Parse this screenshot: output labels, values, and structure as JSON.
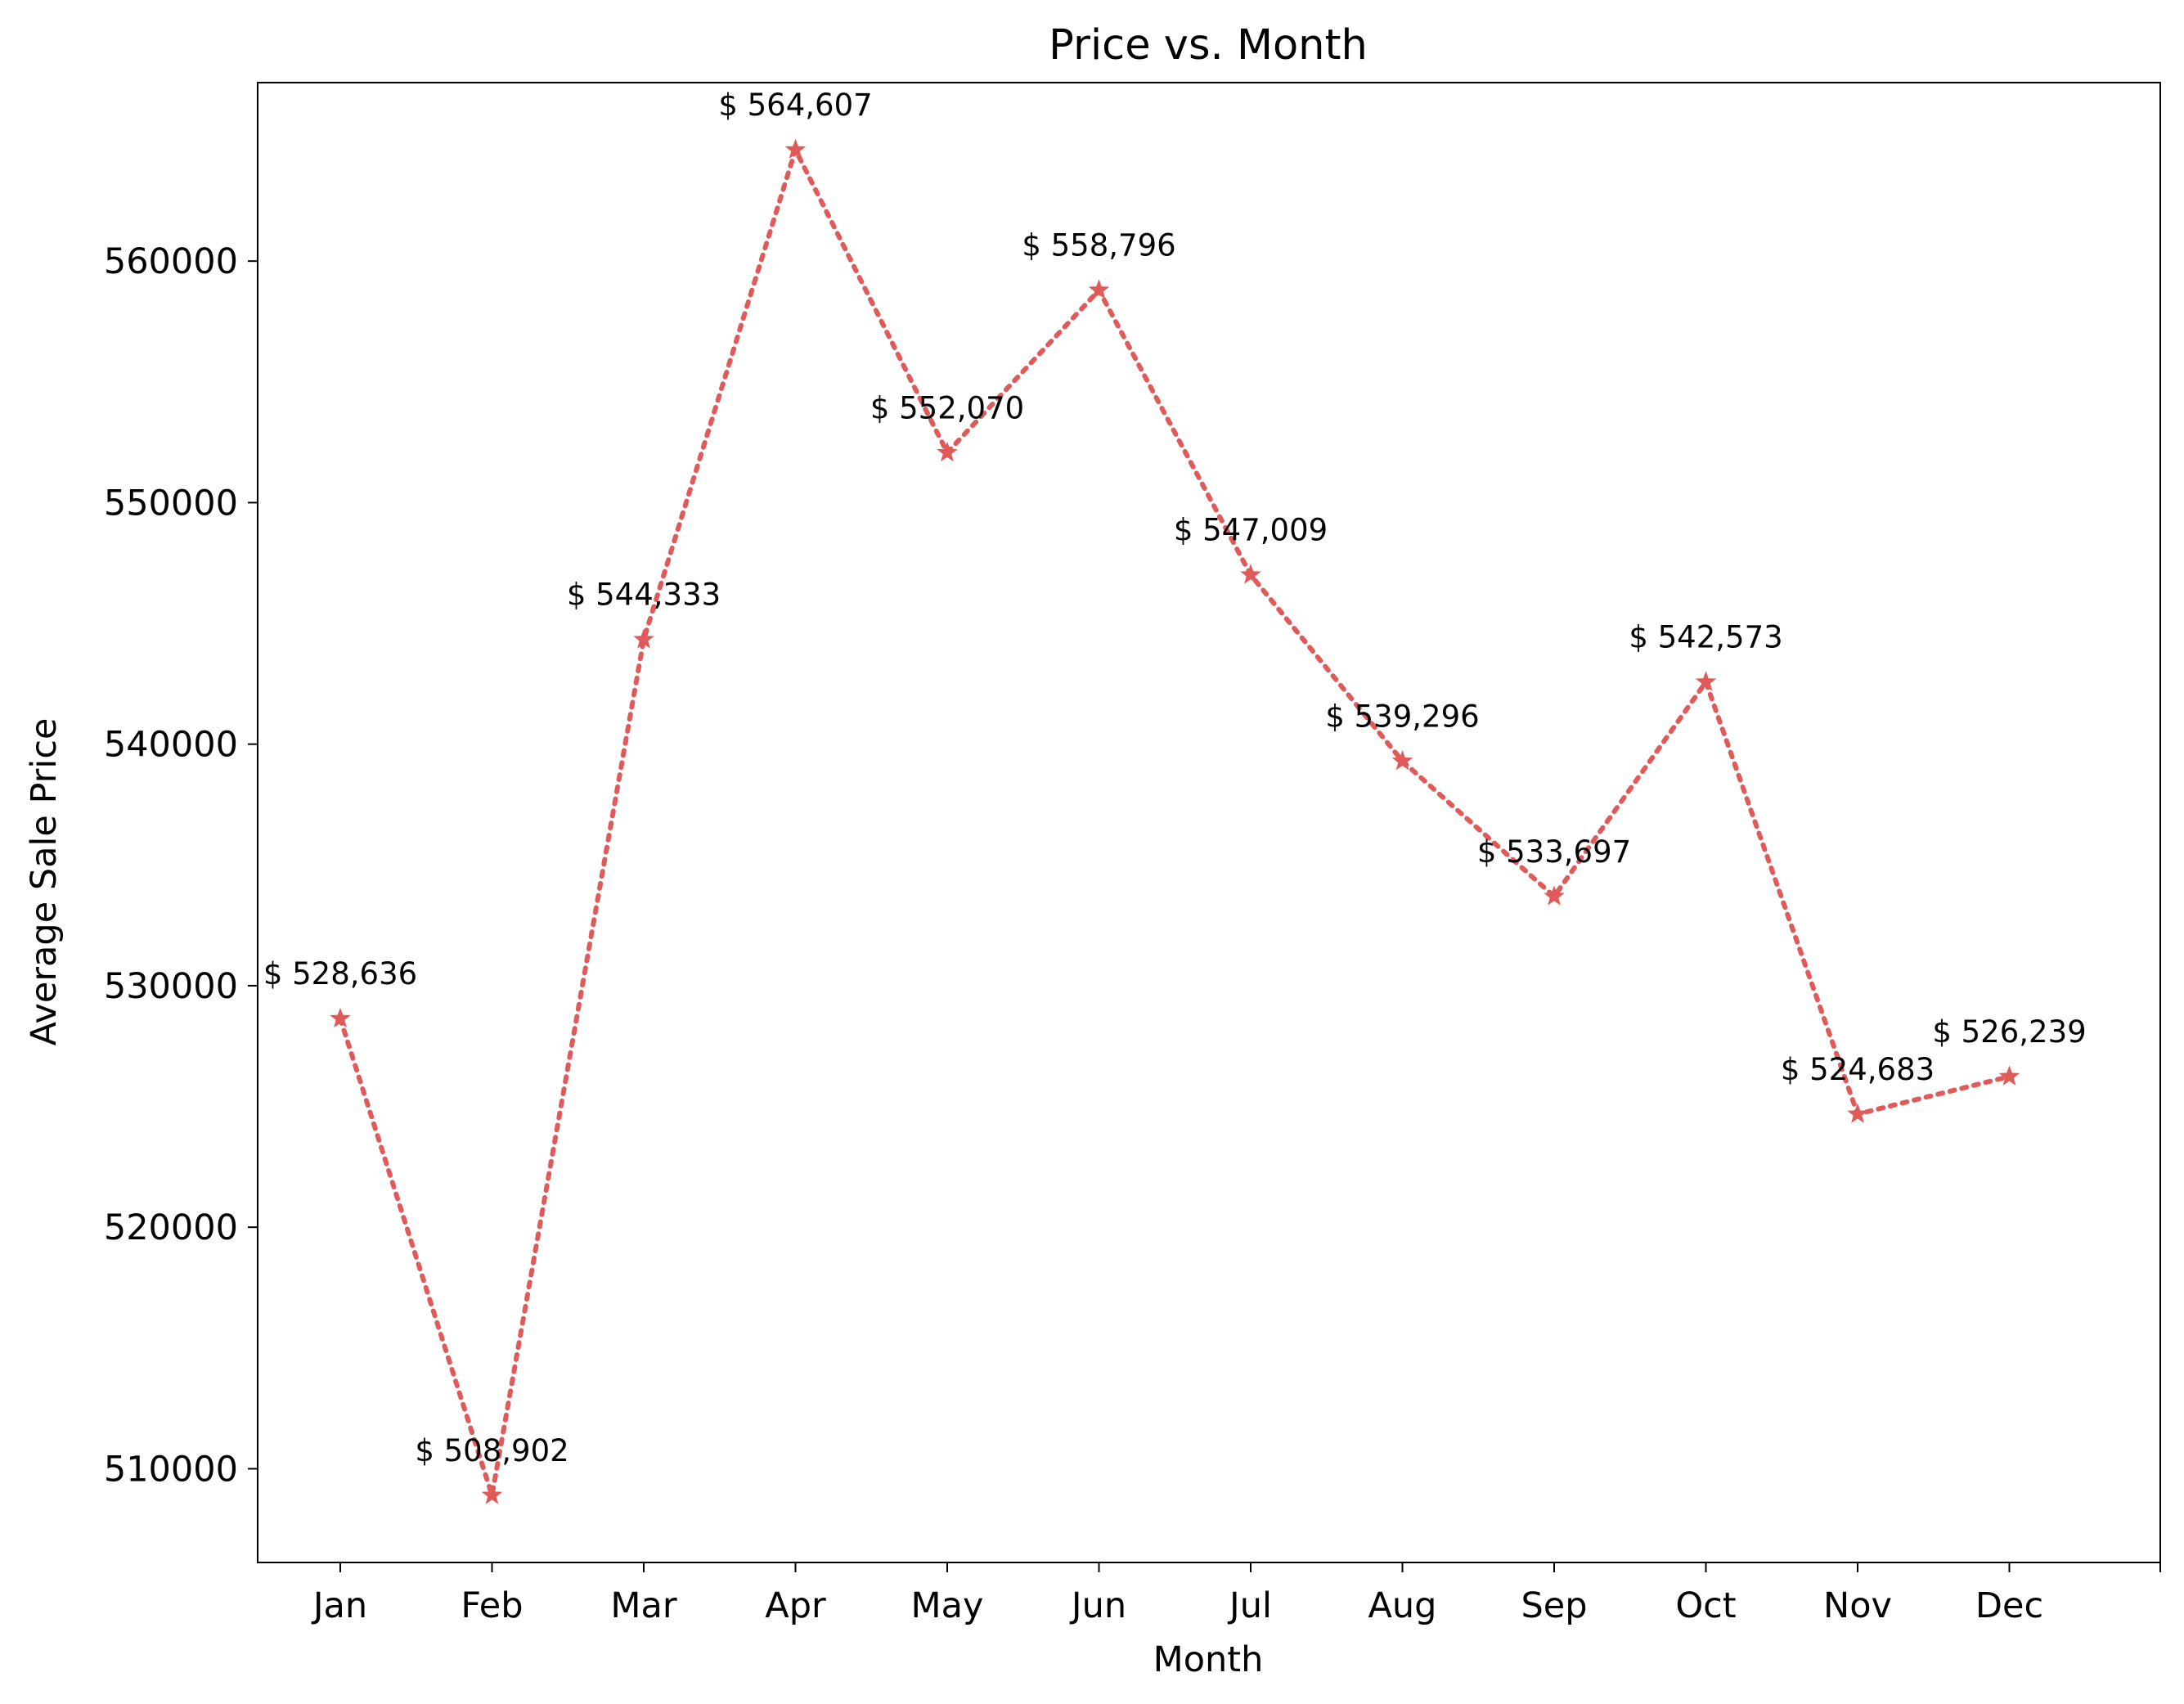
{
  "chart_data": {
    "type": "line",
    "title": "Price vs. Month",
    "xlabel": "Month",
    "ylabel": "Average Sale Price",
    "categories": [
      "Jan",
      "Feb",
      "Mar",
      "Apr",
      "May",
      "Jun",
      "Jul",
      "Aug",
      "Sep",
      "Oct",
      "Nov",
      "Dec"
    ],
    "values": [
      528636,
      508902,
      544333,
      564607,
      552070,
      558796,
      547009,
      539296,
      533697,
      542573,
      524683,
      526239
    ],
    "data_labels": [
      "$ 528,636",
      "$ 508,902",
      "$ 544,333",
      "$ 564,607",
      "$ 552,070",
      "$ 558,796",
      "$ 547,009",
      "$ 539,296",
      "$ 533,697",
      "$ 542,573",
      "$ 524,683",
      "$ 526,239"
    ],
    "y_ticks": [
      510000,
      520000,
      530000,
      540000,
      550000,
      560000
    ],
    "ylim": [
      506120,
      567389
    ],
    "grid": false,
    "legend": "none",
    "line_style": "dotted",
    "marker": "star",
    "series_color": "#e05a5a"
  }
}
